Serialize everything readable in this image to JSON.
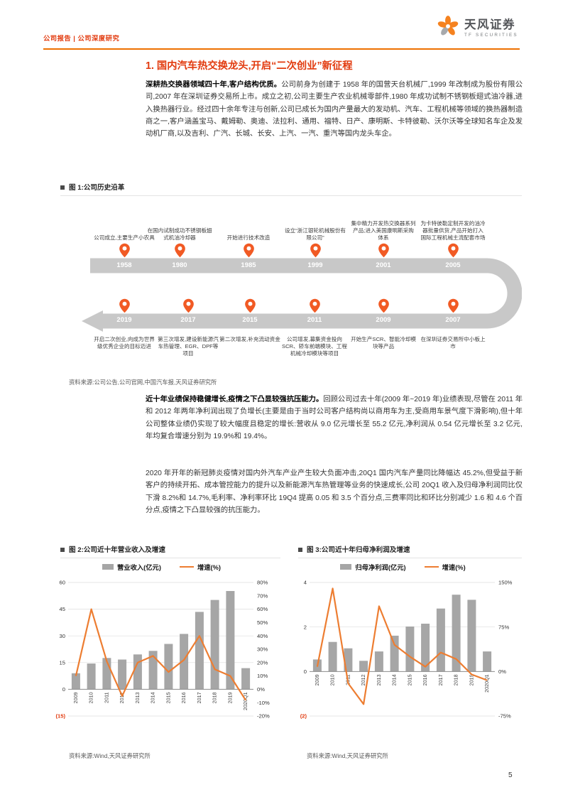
{
  "colors": {
    "accent_red": "#E23A0E",
    "rule_orange": "#EE7000",
    "pin_orange": "#F15A24",
    "band_gray": "#C8C8C8",
    "bar_gray": "#A6A6A6",
    "line_orange": "#ED7D31"
  },
  "header": {
    "left_label": "公司报告 | 公司深度研究",
    "brand_cn": "天风证券",
    "brand_en": "TF SECURITIES"
  },
  "section_title": "1. 国内汽车热交换龙头,开启“二次创业”新征程",
  "paragraphs": [
    {
      "lead": "深耕热交换器领域四十年,客户结构优质。",
      "body": "公司前身为创建于 1958 年的国营天台机械厂,1999 年改制成为股份有限公司,2007 年在深圳证券交易所上市。成立之初,公司主要生产农业机械零部件,1980 年成功试制不锈钢板翅式油冷器,进入换热器行业。经过四十余年专注与创新,公司已成长为国内产量最大的发动机、汽车、工程机械等领域的换热器制造商之一,客户涵盖宝马、戴姆勒、奥迪、法拉利、通用、福特、日产、康明斯、卡特彼勒、沃尔沃等全球知名车企及发动机厂商,以及吉利、广汽、长城、长安、上汽、一汽、重汽等国内龙头车企。"
    },
    {
      "lead": "近十年业绩保持稳健增长,疫情之下凸显较强抗压能力。",
      "body": "回顾公司过去十年(2009 年~2019 年)业绩表现,尽管在 2011 年和 2012 年两年净利润出现了负增长(主要是由于当时公司客户结构尚以商用车为主,受商用车景气度下滑影响),但十年公司整体业绩仍实现了较大幅度且稳定的增长:营收从 9.0 亿元增长至 55.2 亿元,净利润从 0.54 亿元增长至 3.2 亿元,年均复合增速分别为 19.9%和 19.4%。"
    },
    {
      "lead": "",
      "body": "2020 年开年的新冠肺炎疫情对国内外汽车产业产生较大负面冲击,20Q1 国内汽车产量同比降幅达 45.2%,但受益于新客户的持续开拓、成本管控能力的提升以及新能源汽车热管理等业务的快速成长,公司 20Q1 收入及归母净利润同比仅下滑 8.2%和 14.7%,毛利率、净利率环比 19Q4 提高 0.05 和 3.5 个百分点,三费率同比和环比分别减少 1.6 和 4.6 个百分点,疫情之下凸显较强的抗压能力。"
    }
  ],
  "figure1": {
    "caption": "图 1:公司历史沿革",
    "source": "资料来源:公司公告,公司官网,中国汽车报,天风证券研究所",
    "top": [
      {
        "year": "1958",
        "desc": "公司成立,主要生产小农具"
      },
      {
        "year": "1980",
        "desc": "在国内试制成功不锈钢板翅式机油冷却器"
      },
      {
        "year": "1985",
        "desc": "开始进行技术改造"
      },
      {
        "year": "1999",
        "desc": "设立“浙江银轮机械股份有限公司”"
      },
      {
        "year": "2001",
        "desc": "集中精力开发热交换器系列产品;进入美国康明斯采购体系"
      },
      {
        "year": "2005",
        "desc": "为卡特彼勒定制开发的油冷器批量供货,产品开始打入国际工程机械主流配套市场"
      }
    ],
    "bottom": [
      {
        "year": "2019",
        "desc": "开启二次创业,向成为世界级优秀企业的目标迈进"
      },
      {
        "year": "2017",
        "desc": "第三次增发,建设新能源汽车热管理、EGR、DPF等项目"
      },
      {
        "year": "2015",
        "desc": "第二次增发,补充流动资金"
      },
      {
        "year": "2011",
        "desc": "公司增发,募集资金投向SCR、轿车前端模块、工程机械冷却模块等项目"
      },
      {
        "year": "2009",
        "desc": "开始生产SCR、智能冷却模块等产品"
      },
      {
        "year": "2007",
        "desc": "在深圳证券交易所中小板上市"
      }
    ]
  },
  "chart_data": [
    {
      "type": "bar+line",
      "title": "图 2:公司近十年营业收入及增速",
      "categories": [
        "2009",
        "2010",
        "2011",
        "2012",
        "2013",
        "2014",
        "2015",
        "2016",
        "2017",
        "2018",
        "2019",
        "2020Q1"
      ],
      "series": [
        {
          "name": "营业收入(亿元)",
          "type": "bar",
          "axis": "left",
          "values": [
            9.0,
            14.5,
            17.6,
            16.7,
            19.6,
            21.6,
            25.5,
            31.1,
            43.5,
            50.2,
            55.2,
            11.9
          ]
        },
        {
          "name": "增速(%)",
          "type": "line",
          "axis": "right",
          "values": [
            10,
            60,
            21,
            -5,
            20,
            25,
            13,
            22,
            40,
            15,
            10,
            -8.2
          ]
        }
      ],
      "left_axis": {
        "min": -15,
        "max": 60,
        "step": 15
      },
      "right_axis": {
        "min": -20,
        "max": 80,
        "step": 10
      },
      "legend_position": "top",
      "grid": true,
      "source": "资料来源:Wind,天风证券研究所"
    },
    {
      "type": "bar+line",
      "title": "图 3:公司近十年归母净利润及增速",
      "categories": [
        "2009",
        "2010",
        "2011",
        "2012",
        "2013",
        "2014",
        "2015",
        "2016",
        "2017",
        "2018",
        "2019",
        "2020Q1"
      ],
      "series": [
        {
          "name": "归母净利润(亿元)",
          "type": "bar",
          "axis": "left",
          "values": [
            0.54,
            1.33,
            1.04,
            0.48,
            0.9,
            1.61,
            2.02,
            2.15,
            2.83,
            3.45,
            3.22,
            0.9
          ]
        },
        {
          "name": "增速(%)",
          "type": "line",
          "axis": "right",
          "values": [
            8,
            140,
            -20,
            -55,
            110,
            45,
            25,
            8,
            32,
            21,
            -5,
            -14.7
          ]
        }
      ],
      "left_axis": {
        "min": -2,
        "max": 4,
        "step": 2
      },
      "right_axis": {
        "min": -75,
        "max": 150,
        "step": 75
      },
      "legend_position": "top",
      "grid": true,
      "source": "资料来源:Wind,天风证券研究所"
    }
  ],
  "page_number": "5"
}
